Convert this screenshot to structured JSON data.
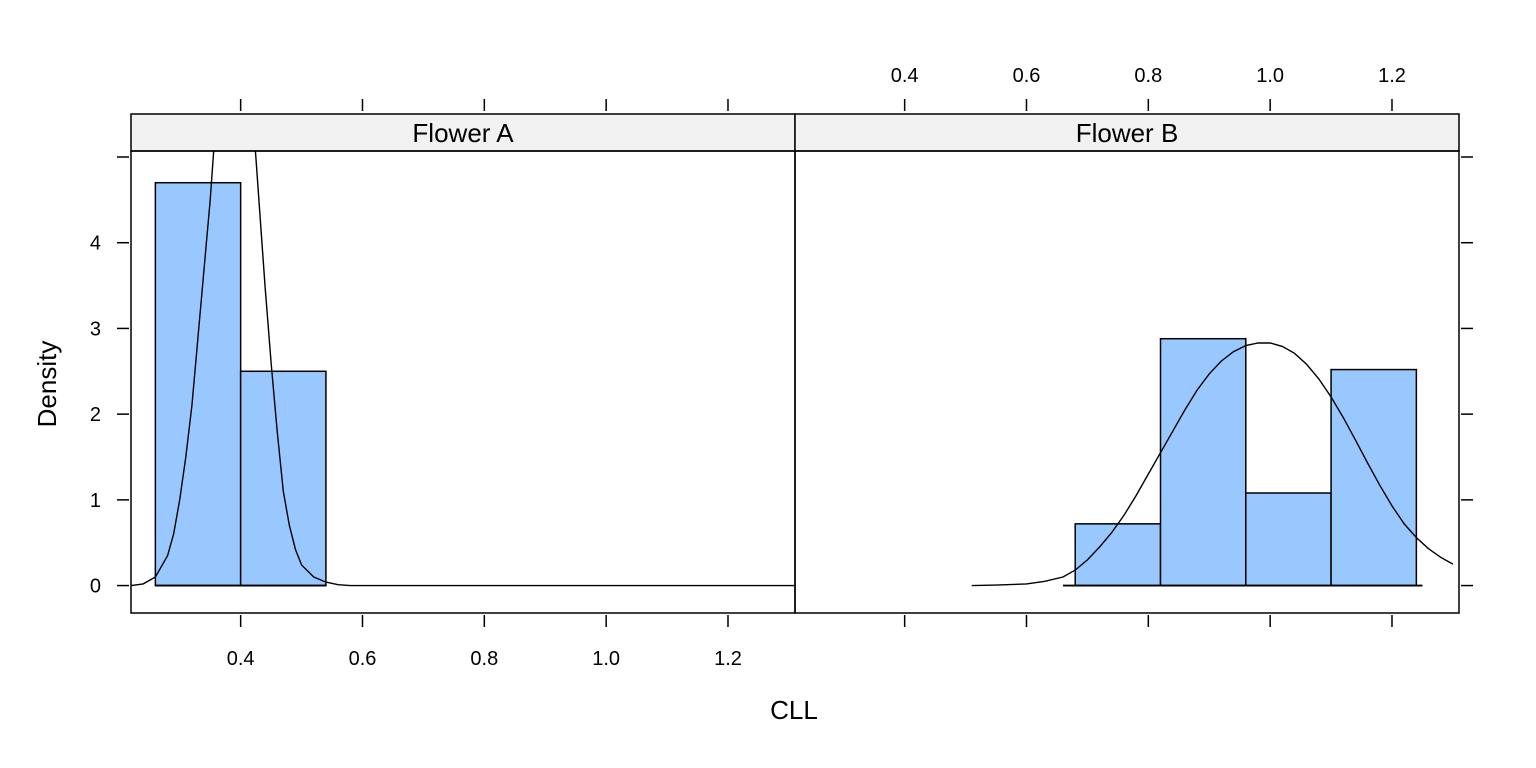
{
  "chart_data": {
    "type": "bar",
    "xlabel": "CLL",
    "ylabel": "Density",
    "xlim": [
      0.22,
      1.31
    ],
    "ylim": [
      -0.32,
      5.07
    ],
    "x_ticks": [
      "0.4",
      "0.6",
      "0.8",
      "1.0",
      "1.2"
    ],
    "x_tick_values": [
      0.4,
      0.6,
      0.8,
      1.0,
      1.2
    ],
    "y_ticks": [
      "0",
      "1",
      "2",
      "3",
      "4"
    ],
    "y_tick_values": [
      0,
      1,
      2,
      3,
      4
    ],
    "grid": false,
    "colors": {
      "bar_fill": "#99c8ff",
      "strip_fill": "#f2f2f2",
      "line": "#000000"
    },
    "panels": [
      {
        "name": "Flower A",
        "baseline": [
          0.26,
          0.54
        ],
        "bins": [
          {
            "x0": 0.26,
            "x1": 0.4,
            "density": 4.7
          },
          {
            "x0": 0.4,
            "x1": 0.54,
            "density": 2.5
          }
        ],
        "density_curve": [
          [
            0.22,
            0.0
          ],
          [
            0.24,
            0.02
          ],
          [
            0.26,
            0.1
          ],
          [
            0.28,
            0.35
          ],
          [
            0.29,
            0.6
          ],
          [
            0.3,
            1.0
          ],
          [
            0.31,
            1.5
          ],
          [
            0.32,
            2.1
          ],
          [
            0.33,
            2.9
          ],
          [
            0.34,
            3.7
          ],
          [
            0.35,
            4.5
          ],
          [
            0.36,
            5.5
          ],
          [
            0.42,
            5.5
          ],
          [
            0.43,
            4.5
          ],
          [
            0.44,
            3.5
          ],
          [
            0.45,
            2.6
          ],
          [
            0.46,
            1.8
          ],
          [
            0.47,
            1.1
          ],
          [
            0.48,
            0.7
          ],
          [
            0.49,
            0.42
          ],
          [
            0.5,
            0.24
          ],
          [
            0.52,
            0.1
          ],
          [
            0.54,
            0.04
          ],
          [
            0.56,
            0.01
          ],
          [
            0.58,
            0.0
          ],
          [
            1.31,
            0.0
          ]
        ]
      },
      {
        "name": "Flower B",
        "baseline": [
          0.66,
          1.25
        ],
        "bins": [
          {
            "x0": 0.68,
            "x1": 0.82,
            "density": 0.72
          },
          {
            "x0": 0.82,
            "x1": 0.96,
            "density": 2.88
          },
          {
            "x0": 0.96,
            "x1": 1.1,
            "density": 1.08
          },
          {
            "x0": 1.1,
            "x1": 1.24,
            "density": 2.52
          }
        ],
        "density_curve": [
          [
            0.51,
            0.0
          ],
          [
            0.55,
            0.005
          ],
          [
            0.6,
            0.02
          ],
          [
            0.63,
            0.05
          ],
          [
            0.66,
            0.1
          ],
          [
            0.68,
            0.18
          ],
          [
            0.7,
            0.3
          ],
          [
            0.72,
            0.45
          ],
          [
            0.74,
            0.62
          ],
          [
            0.76,
            0.82
          ],
          [
            0.78,
            1.05
          ],
          [
            0.8,
            1.3
          ],
          [
            0.82,
            1.55
          ],
          [
            0.84,
            1.8
          ],
          [
            0.86,
            2.05
          ],
          [
            0.88,
            2.28
          ],
          [
            0.9,
            2.47
          ],
          [
            0.92,
            2.62
          ],
          [
            0.94,
            2.73
          ],
          [
            0.96,
            2.8
          ],
          [
            0.98,
            2.83
          ],
          [
            1.0,
            2.83
          ],
          [
            1.02,
            2.79
          ],
          [
            1.04,
            2.71
          ],
          [
            1.06,
            2.58
          ],
          [
            1.08,
            2.41
          ],
          [
            1.1,
            2.2
          ],
          [
            1.12,
            1.96
          ],
          [
            1.14,
            1.7
          ],
          [
            1.16,
            1.43
          ],
          [
            1.18,
            1.17
          ],
          [
            1.2,
            0.93
          ],
          [
            1.22,
            0.72
          ],
          [
            1.24,
            0.56
          ],
          [
            1.26,
            0.43
          ],
          [
            1.28,
            0.33
          ],
          [
            1.3,
            0.25
          ]
        ]
      }
    ]
  }
}
